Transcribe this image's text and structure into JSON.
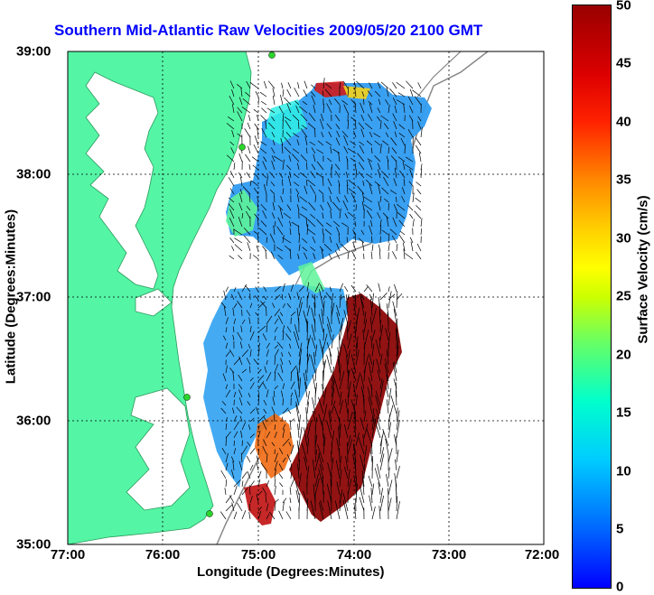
{
  "title": "Southern Mid-Atlantic Raw Velocities 2009/05/20 2100 GMT",
  "xaxis": {
    "label": "Longitude (Degrees:Minutes)",
    "ticks": [
      "77:00",
      "76:00",
      "75:00",
      "74:00",
      "73:00",
      "72:00"
    ],
    "range": [
      -77,
      -72
    ]
  },
  "yaxis": {
    "label": "Latitude (Degrees:Minutes)",
    "ticks": [
      "35:00",
      "36:00",
      "37:00",
      "38:00",
      "39:00"
    ],
    "range": [
      35,
      39
    ]
  },
  "colorbar": {
    "label": "Surface Velocity (cm/s)",
    "ticks": [
      "0",
      "5",
      "10",
      "15",
      "20",
      "25",
      "30",
      "35",
      "40",
      "45",
      "50"
    ],
    "range": [
      0,
      50
    ]
  },
  "colors": {
    "land": "#55f5a6",
    "title": "#0000ff",
    "grid": "#000000"
  }
}
